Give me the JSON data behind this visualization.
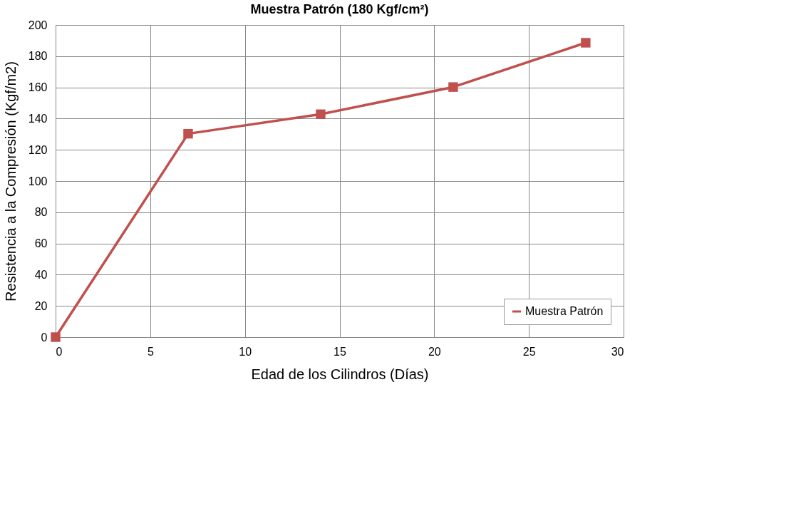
{
  "chart_data": {
    "type": "line",
    "title": "Muestra Patrón (180 Kgf/cm²)",
    "xlabel": "Edad de los Cilindros (Días)",
    "ylabel": "Resistencia a la Compresión (Kgf/m2)",
    "x": [
      0,
      7,
      14,
      21,
      28
    ],
    "series": [
      {
        "name": "Muestra Patrón",
        "color": "#c0504d",
        "values": [
          0,
          130.3,
          142.8,
          160.2,
          188.6
        ]
      }
    ],
    "xlim": [
      0,
      30
    ],
    "xticks": [
      0,
      5,
      10,
      15,
      20,
      25,
      30
    ],
    "ylim": [
      0,
      200
    ],
    "yticks": [
      0,
      20,
      40,
      60,
      80,
      100,
      120,
      140,
      160,
      180,
      200
    ],
    "grid": true,
    "legend": "bottom right",
    "marker": "square",
    "line_style": "solid"
  }
}
